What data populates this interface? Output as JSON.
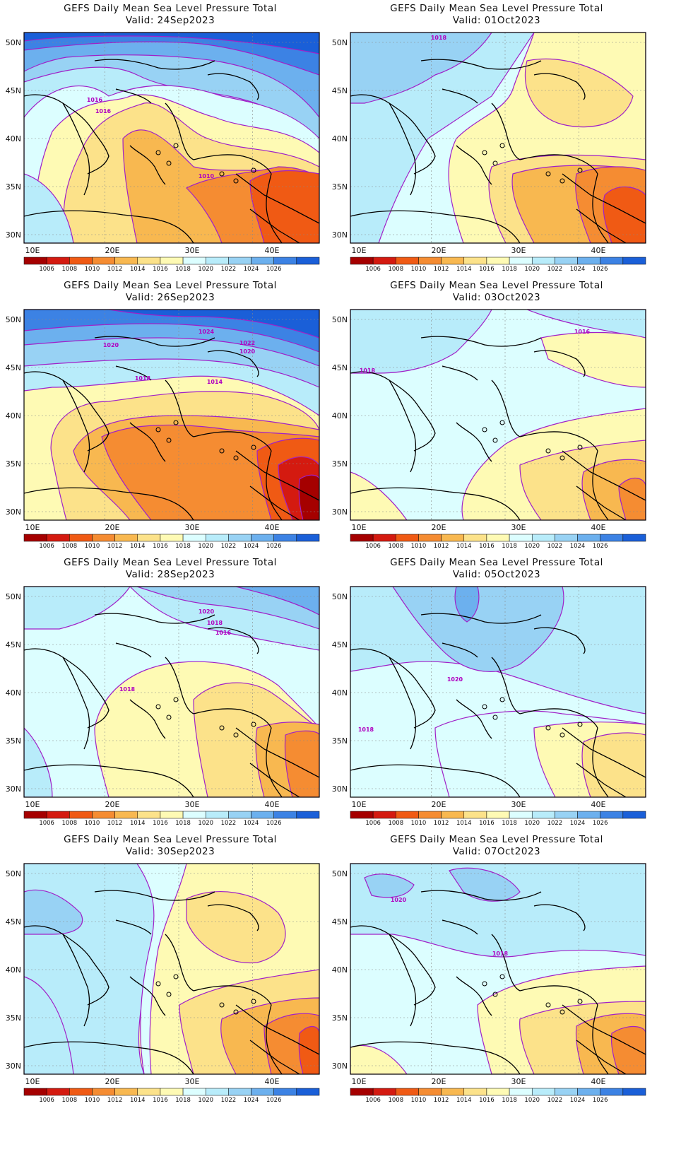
{
  "colorbar": {
    "levels": [
      "1006",
      "1008",
      "1010",
      "1012",
      "1014",
      "1016",
      "1018",
      "1020",
      "1022",
      "1024",
      "1026"
    ],
    "colors": [
      "#a50000",
      "#d41a10",
      "#f05a14",
      "#f58c32",
      "#f8b850",
      "#fce28a",
      "#fefab4",
      "#dcfeff",
      "#b8ecfa",
      "#98d2f4",
      "#6cb0ee",
      "#3c82e4",
      "#1a5fd8"
    ]
  },
  "axes": {
    "x_ticks": [
      "10E",
      "20E",
      "30E",
      "40E"
    ],
    "y_ticks": [
      "50N",
      "45N",
      "40N",
      "35N",
      "30N"
    ]
  },
  "panels": [
    {
      "title": "GEFS Daily Mean Sea Level Pressure Total",
      "valid": "Valid: 24Sep2023",
      "contour_labels": [
        "1016",
        "1016",
        "1010"
      ]
    },
    {
      "title": "GEFS Daily Mean Sea Level Pressure Total",
      "valid": "Valid: 01Oct2023",
      "contour_labels": [
        "1018"
      ]
    },
    {
      "title": "GEFS Daily Mean Sea Level Pressure Total",
      "valid": "Valid: 26Sep2023",
      "contour_labels": [
        "1024",
        "1020",
        "1022",
        "1020",
        "1018",
        "1014"
      ]
    },
    {
      "title": "GEFS Daily Mean Sea Level Pressure Total",
      "valid": "Valid: 03Oct2023",
      "contour_labels": [
        "1016",
        "1018"
      ]
    },
    {
      "title": "GEFS Daily Mean Sea Level Pressure Total",
      "valid": "Valid: 28Sep2023",
      "contour_labels": [
        "1020",
        "1018",
        "1016",
        "1018"
      ]
    },
    {
      "title": "GEFS Daily Mean Sea Level Pressure Total",
      "valid": "Valid: 05Oct2023",
      "contour_labels": [
        "1020",
        "1018"
      ]
    },
    {
      "title": "GEFS Daily Mean Sea Level Pressure Total",
      "valid": "Valid: 30Sep2023",
      "contour_labels": []
    },
    {
      "title": "GEFS Daily Mean Sea Level Pressure Total",
      "valid": "Valid: 07Oct2023",
      "contour_labels": [
        "1020",
        "1018"
      ]
    }
  ]
}
